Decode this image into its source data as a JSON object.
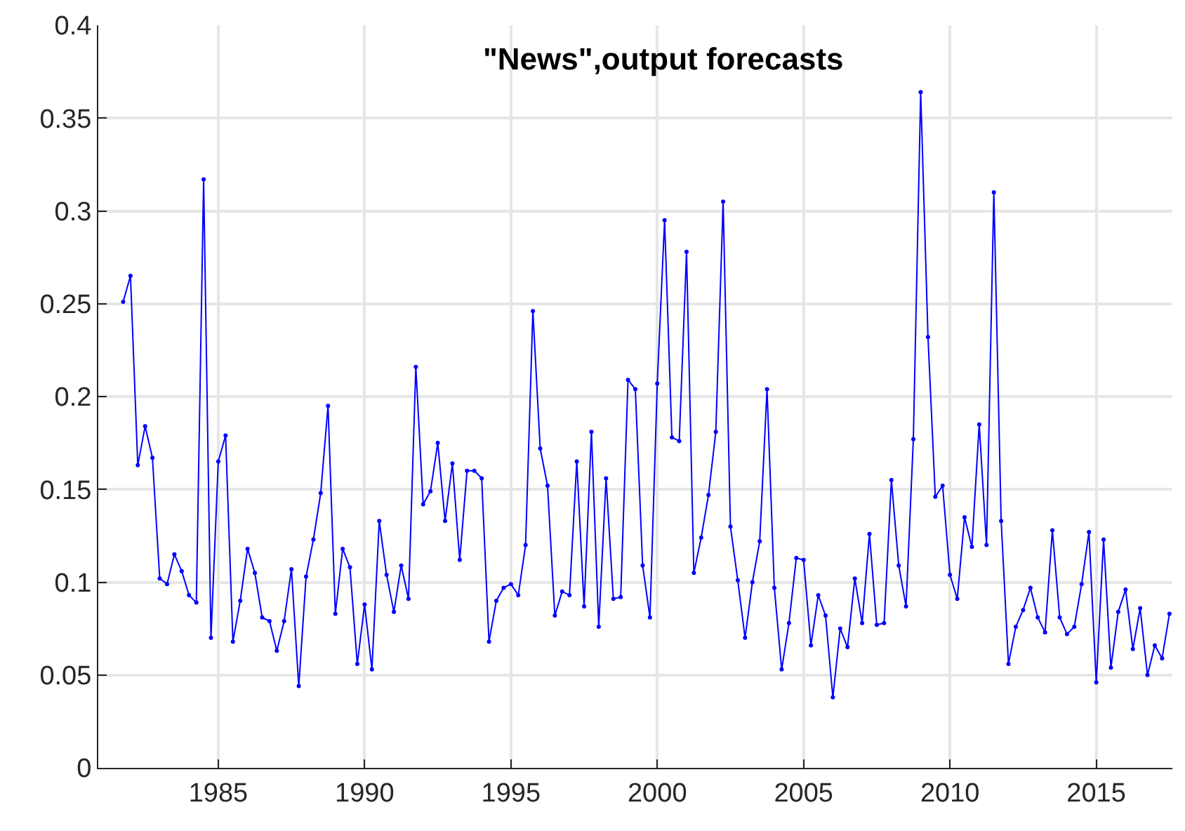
{
  "chart_data": {
    "type": "line",
    "title": "\"News\",output forecasts",
    "x": [
      1981.75,
      1982,
      1982.25,
      1982.5,
      1982.75,
      1983,
      1983.25,
      1983.5,
      1983.75,
      1984,
      1984.25,
      1984.5,
      1984.75,
      1985,
      1985.25,
      1985.5,
      1985.75,
      1986,
      1986.25,
      1986.5,
      1986.75,
      1987,
      1987.25,
      1987.5,
      1987.75,
      1988,
      1988.25,
      1988.5,
      1988.75,
      1989,
      1989.25,
      1989.5,
      1989.75,
      1990,
      1990.25,
      1990.5,
      1990.75,
      1991,
      1991.25,
      1991.5,
      1991.75,
      1992,
      1992.25,
      1992.5,
      1992.75,
      1993,
      1993.25,
      1993.5,
      1993.75,
      1994,
      1994.25,
      1994.5,
      1994.75,
      1995,
      1995.25,
      1995.5,
      1995.75,
      1996,
      1996.25,
      1996.5,
      1996.75,
      1997,
      1997.25,
      1997.5,
      1997.75,
      1998,
      1998.25,
      1998.5,
      1998.75,
      1999,
      1999.25,
      1999.5,
      1999.75,
      2000,
      2000.25,
      2000.5,
      2000.75,
      2001,
      2001.25,
      2001.5,
      2001.75,
      2002,
      2002.25,
      2002.5,
      2002.75,
      2003,
      2003.25,
      2003.5,
      2003.75,
      2004,
      2004.25,
      2004.5,
      2004.75,
      2005,
      2005.25,
      2005.5,
      2005.75,
      2006,
      2006.25,
      2006.5,
      2006.75,
      2007,
      2007.25,
      2007.5,
      2007.75,
      2008,
      2008.25,
      2008.5,
      2008.75,
      2009,
      2009.25,
      2009.5,
      2009.75,
      2010,
      2010.25,
      2010.5,
      2010.75,
      2011,
      2011.25,
      2011.5,
      2011.75,
      2012,
      2012.25,
      2012.5,
      2012.75,
      2013,
      2013.25,
      2013.5,
      2013.75,
      2014,
      2014.25,
      2014.5,
      2014.75,
      2015,
      2015.25,
      2015.5,
      2015.75,
      2016,
      2016.25,
      2016.5,
      2016.75,
      2017,
      2017.25,
      2017.5
    ],
    "series": [
      {
        "color": "#0000ff",
        "values": [
          0.251,
          0.265,
          0.163,
          0.184,
          0.167,
          0.102,
          0.099,
          0.115,
          0.106,
          0.093,
          0.089,
          0.317,
          0.07,
          0.165,
          0.179,
          0.068,
          0.09,
          0.118,
          0.105,
          0.081,
          0.079,
          0.063,
          0.079,
          0.107,
          0.044,
          0.103,
          0.123,
          0.148,
          0.195,
          0.083,
          0.118,
          0.108,
          0.056,
          0.088,
          0.053,
          0.133,
          0.104,
          0.084,
          0.109,
          0.091,
          0.216,
          0.142,
          0.149,
          0.175,
          0.133,
          0.164,
          0.112,
          0.16,
          0.16,
          0.156,
          0.068,
          0.09,
          0.097,
          0.099,
          0.093,
          0.12,
          0.246,
          0.172,
          0.152,
          0.082,
          0.095,
          0.093,
          0.165,
          0.087,
          0.181,
          0.076,
          0.156,
          0.091,
          0.092,
          0.209,
          0.204,
          0.109,
          0.081,
          0.207,
          0.295,
          0.178,
          0.176,
          0.278,
          0.105,
          0.124,
          0.147,
          0.181,
          0.305,
          0.13,
          0.101,
          0.07,
          0.1,
          0.122,
          0.204,
          0.097,
          0.053,
          0.078,
          0.113,
          0.112,
          0.066,
          0.093,
          0.082,
          0.038,
          0.075,
          0.065,
          0.102,
          0.078,
          0.126,
          0.077,
          0.078,
          0.155,
          0.109,
          0.087,
          0.177,
          0.364,
          0.232,
          0.146,
          0.152,
          0.104,
          0.091,
          0.135,
          0.119,
          0.185,
          0.12,
          0.31,
          0.133,
          0.056,
          0.076,
          0.085,
          0.097,
          0.081,
          0.073,
          0.128,
          0.081,
          0.072,
          0.076,
          0.099,
          0.127,
          0.046,
          0.123,
          0.054,
          0.084,
          0.096,
          0.064,
          0.086,
          0.05,
          0.066,
          0.059,
          0.083
        ]
      }
    ],
    "xlim": [
      1980.9,
      2017.6
    ],
    "xticks": [
      1985,
      1990,
      1995,
      2000,
      2005,
      2010,
      2015
    ],
    "ylim": [
      0,
      0.4
    ],
    "yticks": [
      0,
      0.05,
      0.1,
      0.15,
      0.2,
      0.25,
      0.3,
      0.35,
      0.4
    ],
    "grid": true,
    "marker": "circle",
    "line_style": "solid"
  }
}
